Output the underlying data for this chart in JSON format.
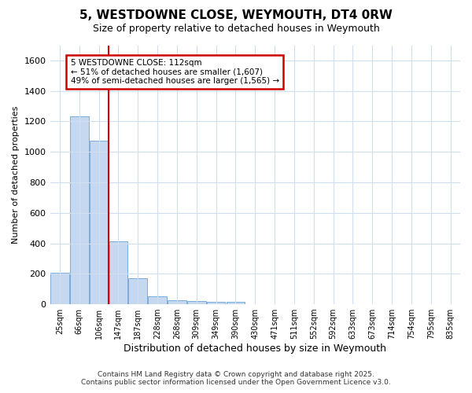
{
  "title": "5, WESTDOWNE CLOSE, WEYMOUTH, DT4 0RW",
  "subtitle": "Size of property relative to detached houses in Weymouth",
  "xlabel": "Distribution of detached houses by size in Weymouth",
  "ylabel": "Number of detached properties",
  "bar_labels": [
    "25sqm",
    "66sqm",
    "106sqm",
    "147sqm",
    "187sqm",
    "228sqm",
    "268sqm",
    "309sqm",
    "349sqm",
    "390sqm",
    "430sqm",
    "471sqm",
    "511sqm",
    "552sqm",
    "592sqm",
    "633sqm",
    "673sqm",
    "714sqm",
    "754sqm",
    "795sqm",
    "835sqm"
  ],
  "bar_values": [
    205,
    1235,
    1075,
    415,
    170,
    50,
    28,
    20,
    15,
    15,
    0,
    0,
    0,
    0,
    0,
    0,
    0,
    0,
    0,
    0,
    0
  ],
  "bar_color": "#c5d8f0",
  "bar_edge_color": "#7aaddb",
  "vline_x": 2.5,
  "vline_color": "#dd0000",
  "annotation_text": "5 WESTDOWNE CLOSE: 112sqm\n← 51% of detached houses are smaller (1,607)\n49% of semi-detached houses are larger (1,565) →",
  "annotation_box_color": "#ffffff",
  "annotation_box_edge_color": "#cc0000",
  "ylim": [
    0,
    1700
  ],
  "yticks": [
    0,
    200,
    400,
    600,
    800,
    1000,
    1200,
    1400,
    1600
  ],
  "background_color": "#ffffff",
  "grid_color": "#d0dff0",
  "footer_line1": "Contains HM Land Registry data © Crown copyright and database right 2025.",
  "footer_line2": "Contains public sector information licensed under the Open Government Licence v3.0."
}
